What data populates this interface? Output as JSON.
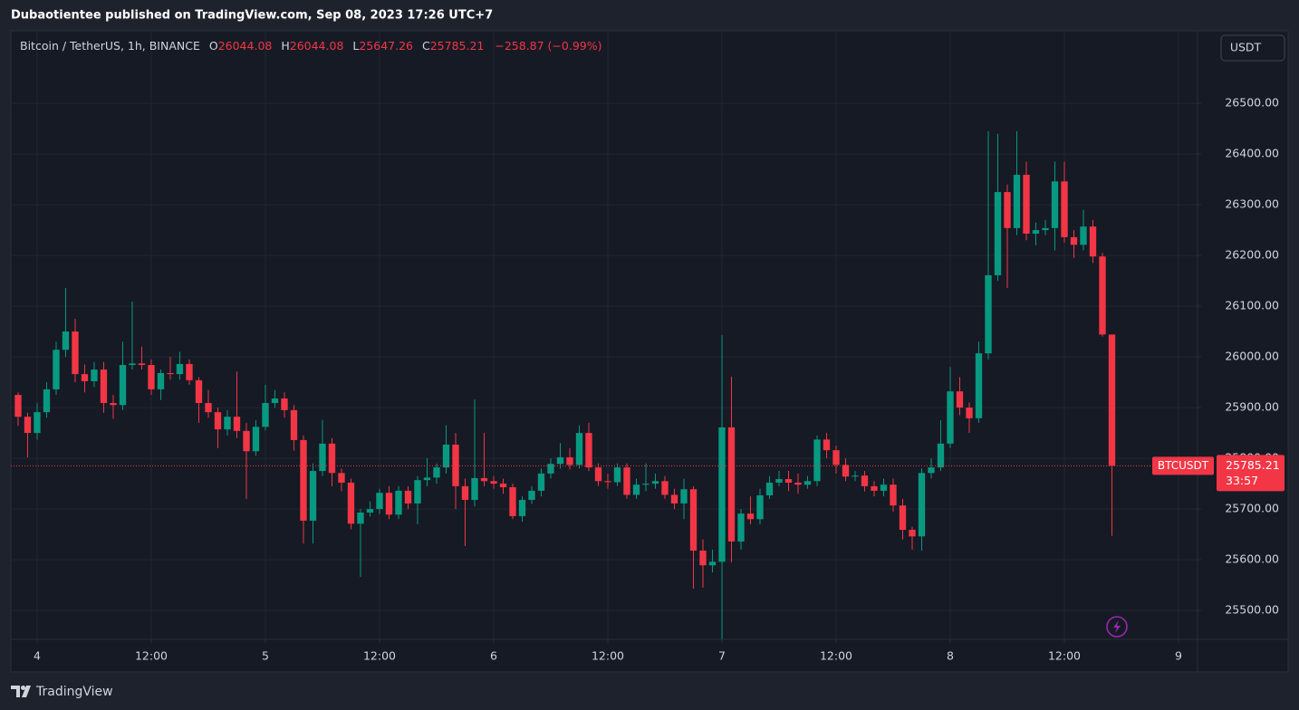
{
  "header": "Dubaotientee published on TradingView.com, Sep 08, 2023 17:26 UTC+7",
  "footer_brand": "TradingView",
  "chart_data": {
    "type": "candlestick",
    "title": "Bitcoin / TetherUS, 1h, BINANCE",
    "ohlc_labels": [
      "O",
      "H",
      "L",
      "C"
    ],
    "change": "−258.87 (−0.99%)",
    "symbol_label": "BTCUSDT",
    "countdown": "33:57",
    "currency": "USDT",
    "up_color": "#089981",
    "down_color": "#f23645",
    "grid": true,
    "x": [
      -2,
      -1,
      0,
      1,
      2,
      3,
      4,
      5,
      6,
      7,
      8,
      9,
      10,
      11,
      12,
      13,
      14,
      15,
      16,
      17,
      18,
      19,
      20,
      21,
      22,
      23,
      24,
      25,
      26,
      27,
      28,
      29,
      30,
      31,
      32,
      33,
      34,
      35,
      36,
      37,
      38,
      39,
      40,
      41,
      42,
      43,
      44,
      45,
      46,
      47,
      48,
      49,
      50,
      51,
      52,
      53,
      54,
      55,
      56,
      57,
      58,
      59,
      60,
      61,
      62,
      63,
      64,
      65,
      66,
      67,
      68,
      69,
      70,
      71,
      72,
      73,
      74,
      75,
      76,
      77,
      78,
      79,
      80,
      81,
      82,
      83,
      84,
      85,
      86,
      87,
      88,
      89,
      90,
      91,
      92,
      93,
      94,
      95,
      96,
      97,
      98,
      99,
      100,
      101,
      102,
      103,
      104,
      105,
      106,
      107,
      108,
      109,
      110,
      111,
      112,
      113
    ],
    "open": [
      25925,
      25882,
      25850,
      25891,
      25936,
      26014,
      26050,
      25966,
      25952,
      25975,
      25909,
      25905,
      25984,
      25987,
      25984,
      25936,
      25968,
      25966,
      25986,
      25954,
      25909,
      25891,
      25857,
      25882,
      25854,
      25814,
      25862,
      25909,
      25918,
      25895,
      25836,
      25677,
      25775,
      25829,
      25771,
      25752,
      25671,
      25693,
      25700,
      25732,
      25689,
      25736,
      25711,
      25757,
      25762,
      25782,
      25827,
      25745,
      25718,
      25761,
      25755,
      25750,
      25743,
      25686,
      25718,
      25736,
      25770,
      25789,
      25802,
      25787,
      25850,
      25782,
      25755,
      25753,
      25782,
      25728,
      25748,
      25750,
      25755,
      25728,
      25711,
      25739,
      25618,
      25589,
      25596,
      25861,
      25636,
      25691,
      25680,
      25727,
      25752,
      25759,
      25752,
      25748,
      25755,
      25837,
      25816,
      25787,
      25764,
      25766,
      25745,
      25736,
      25748,
      25707,
      25659,
      25646,
      25771,
      25782,
      25829,
      25932,
      25900,
      25879,
      26007,
      26161,
      26325,
      26254,
      26359,
      26243,
      26250,
      26254,
      26346,
      26236,
      26221,
      26257,
      26198,
      26044.08
    ],
    "high": [
      25930,
      25890,
      25909,
      25950,
      26030,
      26136,
      26075,
      25985,
      25990,
      25990,
      25925,
      26030,
      26109,
      26020,
      25995,
      25975,
      26000,
      26010,
      25995,
      25960,
      25935,
      25900,
      25895,
      25971,
      25870,
      25875,
      25945,
      25935,
      25930,
      25905,
      25845,
      25790,
      25876,
      25840,
      25780,
      25760,
      25700,
      25715,
      25740,
      25745,
      25745,
      25745,
      25765,
      25800,
      25790,
      25865,
      25850,
      25760,
      25916,
      25850,
      25765,
      25760,
      25750,
      25725,
      25745,
      25780,
      25800,
      25830,
      25820,
      25865,
      25870,
      25790,
      25770,
      25790,
      25790,
      25760,
      25790,
      25770,
      25765,
      25740,
      25760,
      25745,
      25640,
      25620,
      26043,
      25961,
      25700,
      25725,
      25740,
      25765,
      25775,
      25775,
      25770,
      25765,
      25845,
      25850,
      25825,
      25800,
      25775,
      25775,
      25755,
      25760,
      25760,
      25720,
      25665,
      25780,
      25800,
      25875,
      25980,
      25960,
      25910,
      26030,
      26445,
      26440,
      26340,
      26445,
      26385,
      26265,
      26270,
      26385,
      26385,
      26250,
      26290,
      26270,
      26205,
      26044.08
    ],
    "low": [
      25864,
      25802,
      25837,
      25880,
      25925,
      26000,
      25950,
      25930,
      25940,
      25890,
      25878,
      25895,
      25975,
      25975,
      25925,
      25915,
      25955,
      25955,
      25945,
      25870,
      25880,
      25820,
      25845,
      25840,
      25720,
      25805,
      25855,
      25900,
      25880,
      25815,
      25632,
      25632,
      25765,
      25745,
      25735,
      25660,
      25566,
      25685,
      25690,
      25680,
      25680,
      25700,
      25670,
      25745,
      25750,
      25770,
      25700,
      25627,
      25705,
      25745,
      25740,
      25730,
      25680,
      25675,
      25710,
      25725,
      25760,
      25780,
      25778,
      25780,
      25775,
      25745,
      25740,
      25745,
      25720,
      25720,
      25735,
      25740,
      25720,
      25700,
      25680,
      25543,
      25545,
      25575,
      25441,
      25595,
      25620,
      25670,
      25670,
      25720,
      25745,
      25735,
      25730,
      25740,
      25745,
      25800,
      25770,
      25755,
      25755,
      25735,
      25725,
      25725,
      25695,
      25640,
      25620,
      25618,
      25760,
      25775,
      25820,
      25885,
      25850,
      25870,
      25995,
      26150,
      26136,
      26240,
      26230,
      26220,
      26240,
      26210,
      26225,
      26195,
      26210,
      26185,
      26040,
      25647.26
    ],
    "close": [
      25882,
      25850,
      25891,
      25936,
      26014,
      26050,
      25966,
      25952,
      25975,
      25909,
      25905,
      25984,
      25987,
      25984,
      25936,
      25968,
      25966,
      25986,
      25954,
      25909,
      25891,
      25857,
      25882,
      25854,
      25814,
      25862,
      25909,
      25918,
      25895,
      25836,
      25677,
      25775,
      25829,
      25771,
      25752,
      25671,
      25693,
      25700,
      25732,
      25689,
      25736,
      25711,
      25757,
      25762,
      25782,
      25827,
      25745,
      25718,
      25761,
      25755,
      25750,
      25743,
      25686,
      25718,
      25736,
      25770,
      25789,
      25802,
      25787,
      25850,
      25782,
      25755,
      25753,
      25782,
      25728,
      25748,
      25750,
      25755,
      25728,
      25711,
      25739,
      25618,
      25589,
      25596,
      25861,
      25636,
      25691,
      25680,
      25727,
      25752,
      25759,
      25752,
      25748,
      25755,
      25837,
      25816,
      25787,
      25764,
      25766,
      25745,
      25736,
      25748,
      25707,
      25659,
      25646,
      25771,
      25782,
      25829,
      25932,
      25900,
      25879,
      26007,
      26161,
      26325,
      26254,
      26359,
      26243,
      26250,
      26254,
      26346,
      26236,
      26221,
      26257,
      26198,
      26044.08,
      25785.21
    ],
    "xlim": [
      -2.76,
      122
    ],
    "ylim": [
      25443,
      26643
    ],
    "xticks": [
      {
        "value": 0,
        "label": "4"
      },
      {
        "value": 12,
        "label": "12:00"
      },
      {
        "value": 24,
        "label": "5"
      },
      {
        "value": 36,
        "label": "12:00"
      },
      {
        "value": 48,
        "label": "6"
      },
      {
        "value": 60,
        "label": "12:00"
      },
      {
        "value": 72,
        "label": "7"
      },
      {
        "value": 84,
        "label": "12:00"
      },
      {
        "value": 96,
        "label": "8"
      },
      {
        "value": 108,
        "label": "12:00"
      },
      {
        "value": 120,
        "label": "9"
      }
    ],
    "yticks": [
      {
        "value": 25500,
        "label": "25500.00"
      },
      {
        "value": 25600,
        "label": "25600.00"
      },
      {
        "value": 25700,
        "label": "25700.00"
      },
      {
        "value": 25800,
        "label": "25800.00"
      },
      {
        "value": 25900,
        "label": "25900.00"
      },
      {
        "value": 26000,
        "label": "26000.00"
      },
      {
        "value": 26100,
        "label": "26100.00"
      },
      {
        "value": 26200,
        "label": "26200.00"
      },
      {
        "value": 26300,
        "label": "26300.00"
      },
      {
        "value": 26400,
        "label": "26400.00"
      },
      {
        "value": 26500,
        "label": "26500.00"
      }
    ]
  }
}
